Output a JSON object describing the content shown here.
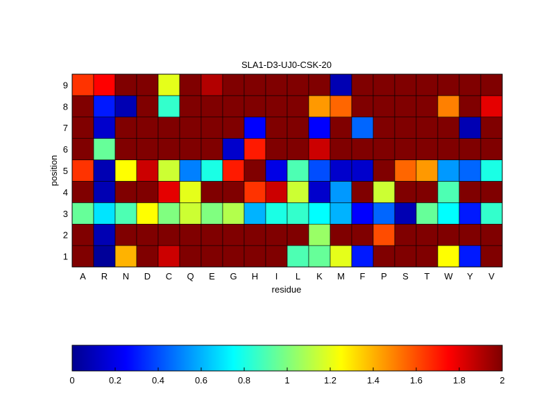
{
  "chart_data": {
    "type": "heatmap",
    "title": "SLA1-D3-UJ0-CSK-20",
    "xlabel": "residue",
    "ylabel": "position",
    "x_categories": [
      "A",
      "R",
      "N",
      "D",
      "C",
      "Q",
      "E",
      "G",
      "H",
      "I",
      "L",
      "K",
      "M",
      "F",
      "P",
      "S",
      "T",
      "W",
      "Y",
      "V"
    ],
    "y_categories": [
      "1",
      "2",
      "3",
      "4",
      "5",
      "6",
      "7",
      "8",
      "9"
    ],
    "colormap": "jet",
    "color_range": [
      0,
      2
    ],
    "colorbar_ticks": [
      "0",
      "0.2",
      "0.4",
      "0.6",
      "0.8",
      "1",
      "1.2",
      "1.4",
      "1.6",
      "1.8",
      "2"
    ],
    "grid": true,
    "colorbar_position": "bottom",
    "values": [
      [
        2.0,
        0.05,
        1.4,
        2.0,
        1.85,
        2.0,
        2.0,
        2.0,
        2.0,
        2.0,
        0.9,
        0.95,
        1.2,
        0.3,
        2.0,
        2.0,
        2.0,
        1.25,
        0.3,
        2.0
      ],
      [
        2.0,
        0.1,
        2.0,
        2.0,
        2.0,
        2.0,
        2.0,
        2.0,
        2.0,
        2.0,
        2.0,
        1.05,
        2.0,
        2.0,
        1.6,
        2.0,
        2.0,
        2.0,
        2.0,
        2.0
      ],
      [
        0.95,
        0.7,
        0.9,
        1.25,
        1.0,
        1.15,
        1.0,
        1.1,
        0.6,
        0.8,
        0.85,
        0.75,
        0.6,
        0.25,
        0.45,
        0.1,
        0.95,
        0.75,
        0.3,
        0.85
      ],
      [
        2.0,
        0.1,
        2.0,
        2.0,
        1.8,
        1.2,
        2.0,
        2.0,
        1.65,
        1.85,
        1.15,
        0.15,
        0.55,
        2.0,
        1.15,
        2.0,
        2.0,
        0.9,
        2.0,
        2.0
      ],
      [
        1.65,
        0.1,
        1.25,
        1.85,
        1.15,
        0.5,
        0.8,
        1.7,
        2.0,
        0.2,
        0.9,
        0.4,
        0.15,
        0.15,
        2.0,
        1.55,
        1.45,
        0.55,
        0.45,
        0.8
      ],
      [
        2.0,
        0.95,
        2.0,
        2.0,
        2.0,
        2.0,
        2.0,
        0.15,
        1.7,
        2.0,
        2.0,
        1.85,
        2.0,
        2.0,
        2.0,
        2.0,
        2.0,
        2.0,
        2.0,
        2.0
      ],
      [
        2.0,
        0.15,
        2.0,
        2.0,
        2.0,
        2.0,
        2.0,
        2.0,
        0.25,
        2.0,
        2.0,
        0.25,
        2.0,
        0.45,
        2.0,
        2.0,
        2.0,
        2.0,
        0.1,
        2.0
      ],
      [
        2.0,
        0.3,
        0.1,
        2.0,
        0.85,
        2.0,
        2.0,
        2.0,
        2.0,
        2.0,
        2.0,
        1.45,
        1.55,
        2.0,
        2.0,
        2.0,
        2.0,
        1.5,
        2.0,
        1.8
      ],
      [
        1.65,
        1.75,
        2.0,
        2.0,
        1.2,
        2.0,
        1.9,
        2.0,
        2.0,
        2.0,
        2.0,
        2.0,
        0.1,
        2.0,
        2.0,
        2.0,
        2.0,
        2.0,
        2.0,
        2.0
      ]
    ]
  }
}
